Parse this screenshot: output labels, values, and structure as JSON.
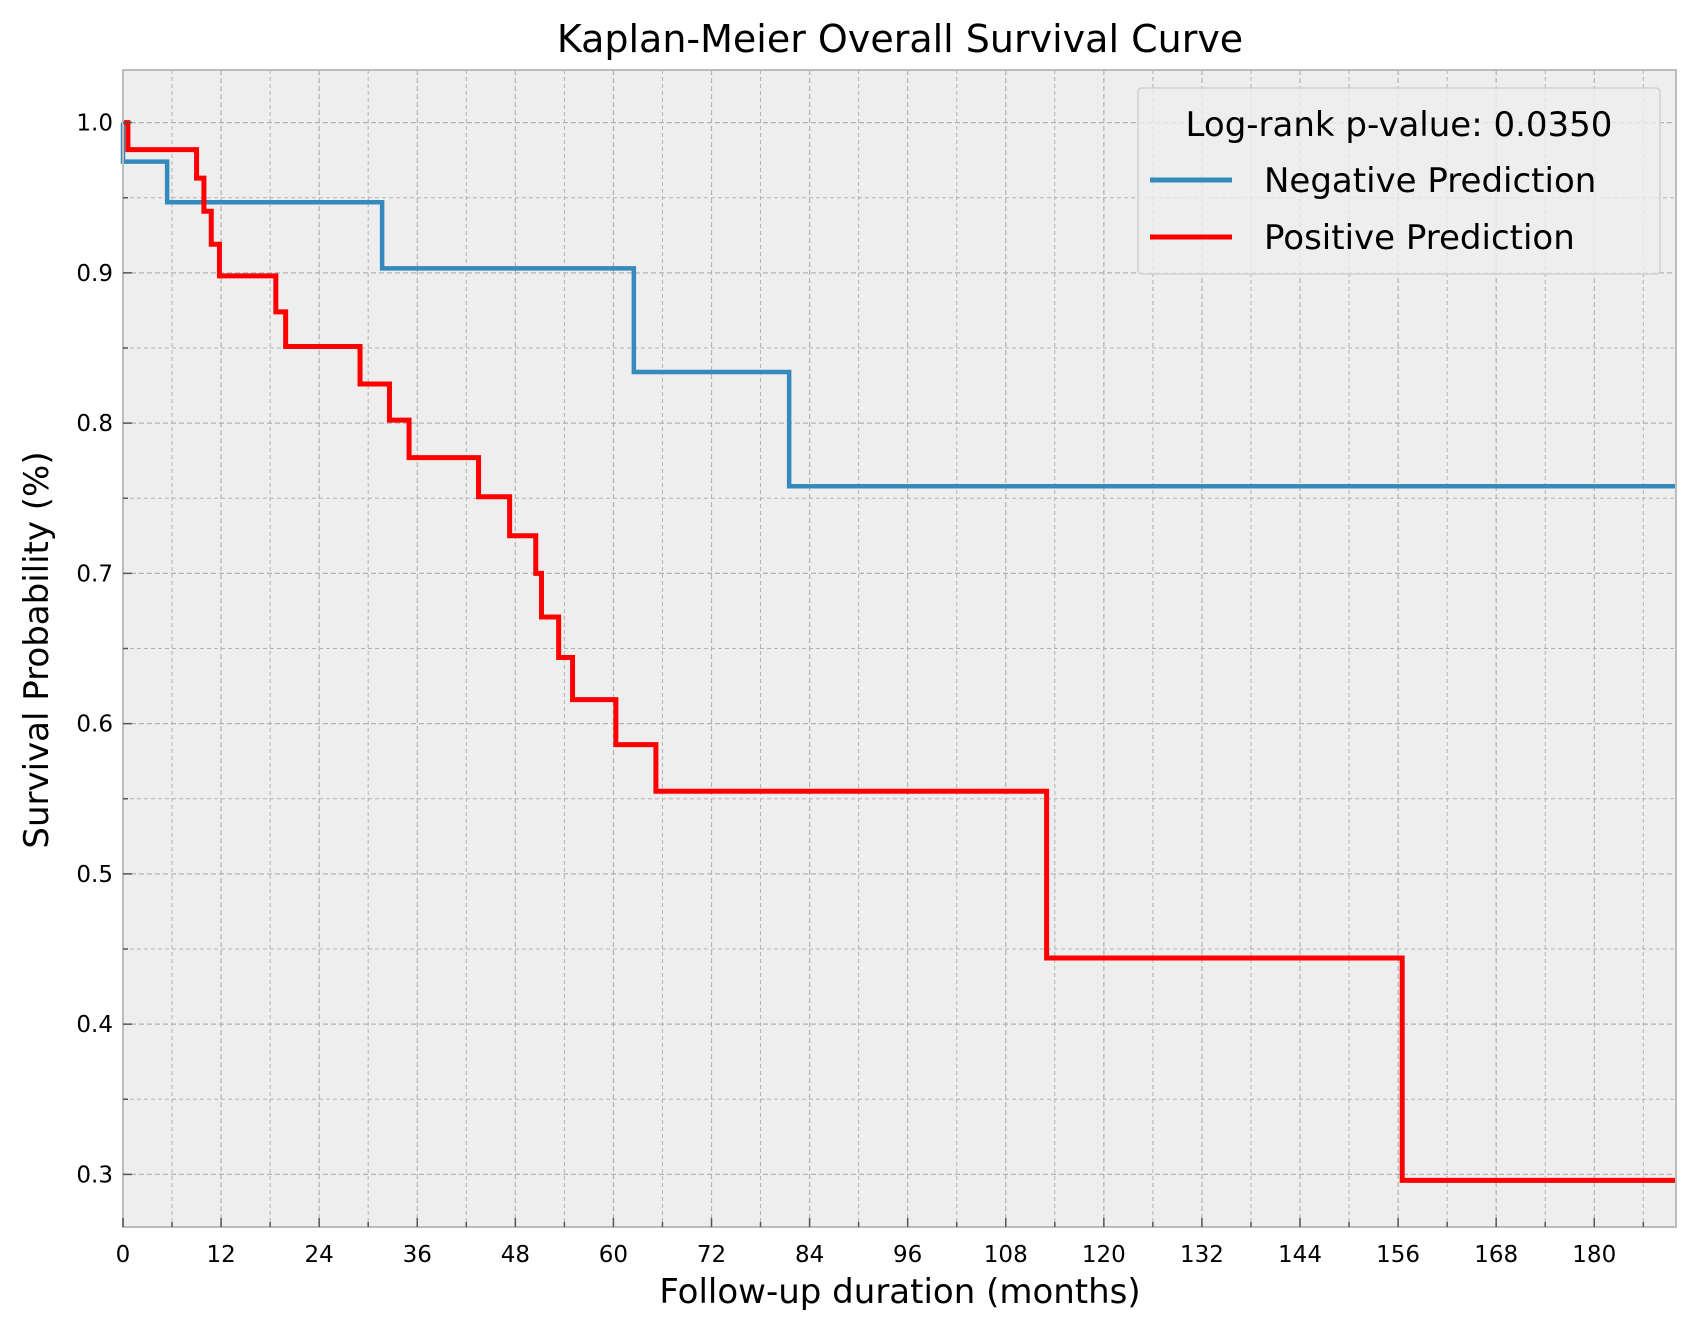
{
  "chart_data": {
    "type": "line",
    "subtype": "step",
    "title": "Kaplan-Meier Overall Survival Curve",
    "xlabel": "Follow-up duration (months)",
    "ylabel": "Survival Probability (%)",
    "xlim": [
      0,
      190
    ],
    "ylim": [
      0.265,
      1.035
    ],
    "xticks": [
      0,
      12,
      24,
      36,
      48,
      60,
      72,
      84,
      96,
      108,
      120,
      132,
      144,
      156,
      168,
      180
    ],
    "xtick_labels": [
      "0",
      "12",
      "24",
      "36",
      "48",
      "60",
      "72",
      "84",
      "96",
      "108",
      "120",
      "132",
      "144",
      "156",
      "168",
      "180"
    ],
    "x_minor_step": 6,
    "yticks": [
      0.3,
      0.4,
      0.5,
      0.6,
      0.7,
      0.8,
      0.9,
      1.0
    ],
    "ytick_labels": [
      "0.3",
      "0.4",
      "0.5",
      "0.6",
      "0.7",
      "0.8",
      "0.9",
      "1.0"
    ],
    "y_minor_step": 0.05,
    "grid": true,
    "background": "#eeeeee",
    "legend": {
      "title": "Log-rank p-value: 0.0350",
      "placement": "top-right"
    },
    "series": [
      {
        "name": "Negative Prediction",
        "color": "#348abd",
        "x": [
          0,
          5.4,
          31.7,
          62.5,
          81.5,
          190
        ],
        "y": [
          0.974,
          0.947,
          0.903,
          0.834,
          0.758,
          0.758
        ]
      },
      {
        "name": "Positive Prediction",
        "color": "#ff0000",
        "x": [
          0,
          0.6,
          9,
          9.9,
          10.8,
          11.8,
          18.7,
          19.9,
          29,
          32.6,
          35,
          43.5,
          47.3,
          50.5,
          50.8,
          51.2,
          53.3,
          55,
          60.3,
          65.2,
          113,
          156.5,
          190
        ],
        "y": [
          1.0,
          0.982,
          0.963,
          0.941,
          0.919,
          0.898,
          0.874,
          0.851,
          0.826,
          0.802,
          0.777,
          0.751,
          0.725,
          0.7,
          0.7,
          0.671,
          0.644,
          0.616,
          0.586,
          0.555,
          0.444,
          0.296,
          0.296
        ]
      }
    ]
  }
}
